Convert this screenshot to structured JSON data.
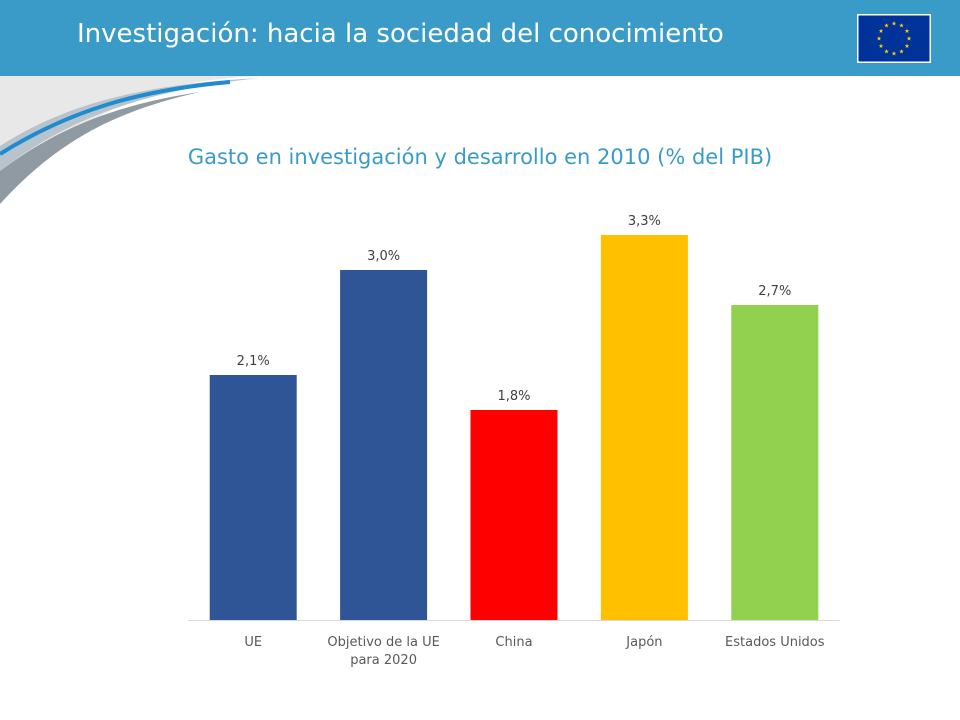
{
  "header": {
    "title": "Investigación: hacia la sociedad del conocimiento",
    "logo_icon": "eu-flag-icon"
  },
  "chart_data": {
    "type": "bar",
    "title": "Gasto en investigación y desarrollo en 2010 (% del PIB)",
    "categories": [
      [
        "UE"
      ],
      [
        "Objetivo de la UE",
        "para 2020"
      ],
      [
        "China"
      ],
      [
        "Japón"
      ],
      [
        "Estados Unidos"
      ]
    ],
    "values": [
      2.1,
      3.0,
      1.8,
      3.3,
      2.7
    ],
    "data_labels": [
      "2,1%",
      "3,0%",
      "1,8%",
      "3,3%",
      "2,7%"
    ],
    "colors": [
      "#2f5597",
      "#2f5597",
      "#ff0000",
      "#ffc000",
      "#92d050"
    ],
    "ylim": [
      0,
      3.6
    ],
    "grid": false,
    "legend": false
  }
}
